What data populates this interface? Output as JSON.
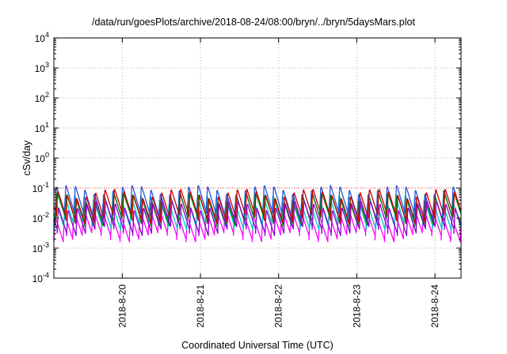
{
  "chart_data": {
    "type": "line",
    "title": "/data/run/goesPlots/archive/2018-08-24/08:00/bryn/../bryn/5daysMars.plot",
    "xlabel": "Coordinated Universal Time (UTC)",
    "ylabel": "cSv/day",
    "yscale": "log",
    "ylim": [
      0.0001,
      10000
    ],
    "y_ticks": [
      {
        "base": "10",
        "exp": "-4"
      },
      {
        "base": "10",
        "exp": "-3"
      },
      {
        "base": "10",
        "exp": "-2"
      },
      {
        "base": "10",
        "exp": "-1"
      },
      {
        "base": "10",
        "exp": "0"
      },
      {
        "base": "10",
        "exp": "1"
      },
      {
        "base": "10",
        "exp": "2"
      },
      {
        "base": "10",
        "exp": "3"
      },
      {
        "base": "10",
        "exp": "4"
      }
    ],
    "xlim": [
      "2018-08-19T03:00",
      "2018-08-24T08:00"
    ],
    "x_ticks": [
      "2018-8-20",
      "2018-8-21",
      "2018-8-22",
      "2018-8-23",
      "2018-8-24"
    ],
    "grid": true,
    "threshold_line": {
      "value": 0.1,
      "color": "#ff4d4d",
      "style": "dotted"
    },
    "pattern": {
      "period_hours": 2.9,
      "description": "sawtooth dose-rate curves, sharp rise then decay, per series"
    },
    "series": [
      {
        "color": "#ff00ff",
        "peak": 0.018,
        "trough": 0.0025
      },
      {
        "color": "#00c8c8",
        "peak": 0.045,
        "trough": 0.006
      },
      {
        "color": "#2255dd",
        "peak": 0.1,
        "trough": 0.012
      },
      {
        "color": "#008800",
        "peak": 0.055,
        "trough": 0.008
      },
      {
        "color": "#cc0000",
        "peak": 0.075,
        "trough": 0.01
      },
      {
        "color": "#8800cc",
        "peak": 0.03,
        "trough": 0.004
      }
    ]
  }
}
